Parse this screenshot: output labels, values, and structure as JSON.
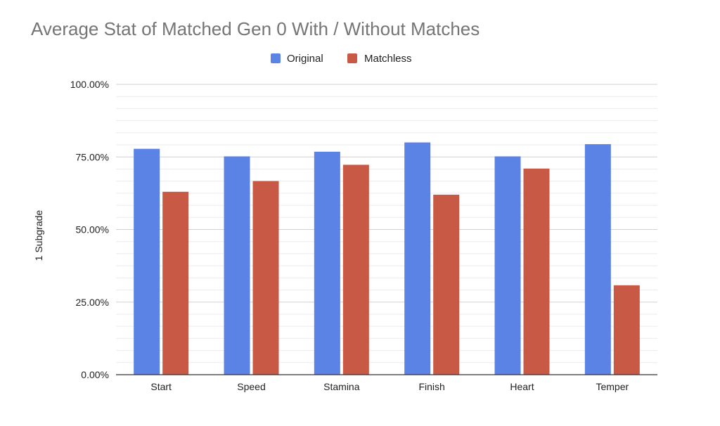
{
  "chart_data": {
    "type": "bar",
    "title": "Average Stat of Matched Gen 0 With / Without Matches",
    "xlabel": "",
    "ylabel": "1 Subgrade",
    "categories": [
      "Start",
      "Speed",
      "Stamina",
      "Finish",
      "Heart",
      "Temper"
    ],
    "series": [
      {
        "name": "Original",
        "color": "#5b83e6",
        "values": [
          77.8,
          75.2,
          76.8,
          80.0,
          75.2,
          79.4
        ]
      },
      {
        "name": "Matchless",
        "color": "#c85a45",
        "values": [
          63.0,
          66.7,
          72.3,
          62.0,
          71.0,
          30.8
        ]
      }
    ],
    "ylim": [
      0,
      100
    ],
    "y_ticks": [
      {
        "value": 0,
        "label": "0.00%"
      },
      {
        "value": 25,
        "label": "25.00%"
      },
      {
        "value": 50,
        "label": "50.00%"
      },
      {
        "value": 75,
        "label": "75.00%"
      },
      {
        "value": 100,
        "label": "100.00%"
      }
    ],
    "minor_grid_step": 4.1667,
    "grid": true,
    "legend_position": "top-center"
  }
}
